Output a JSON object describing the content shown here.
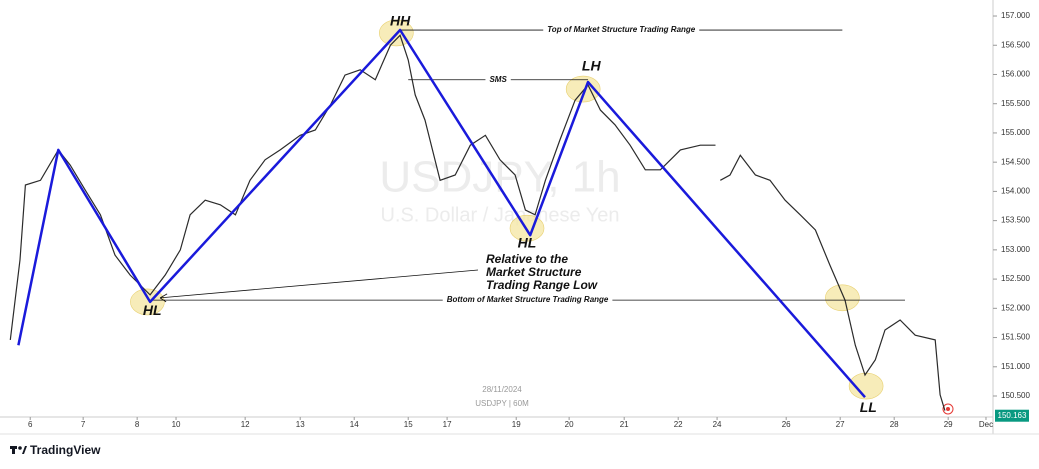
{
  "chart_data": {
    "type": "line",
    "watermark": {
      "symbol": "USDJPY, 1h",
      "description": "U.S. Dollar / Japanese Yen"
    },
    "stamp": {
      "date": "28/11/2024",
      "symbol": "USDJPY | 60M"
    },
    "brand": "TradingView",
    "price_color": "#2b2b2b",
    "x": [
      -0.37,
      -0.19,
      -0.09,
      0.19,
      0.52,
      0.74,
      1.02,
      1.3,
      1.57,
      1.85,
      2.22,
      2.5,
      2.78,
      2.96,
      3.24,
      3.52,
      3.8,
      4.07,
      4.35,
      4.63,
      5.0,
      5.28,
      5.56,
      5.83,
      6.11,
      6.39,
      6.67,
      6.85,
      7.0,
      7.13,
      7.31,
      7.59,
      7.87,
      8.15,
      8.43,
      8.7,
      8.98,
      9.17,
      9.35,
      9.54,
      9.81,
      10.09,
      10.33,
      10.56,
      10.83,
      11.11,
      11.39,
      11.67,
      12.04,
      12.41,
      12.69,
      12.72,
      12.78,
      12.96,
      13.15,
      13.43,
      13.7,
      13.98,
      14.26,
      14.54,
      14.81,
      15.09,
      15.28,
      15.46,
      15.65,
      15.83,
      16.11,
      16.39,
      16.76,
      16.85,
      16.94
    ],
    "values": [
      151.46,
      152.83,
      154.11,
      154.19,
      154.71,
      154.45,
      154.02,
      153.6,
      152.91,
      152.57,
      152.23,
      152.57,
      153.0,
      153.6,
      153.85,
      153.77,
      153.6,
      154.19,
      154.54,
      154.71,
      154.96,
      155.05,
      155.48,
      155.99,
      156.08,
      155.91,
      156.5,
      156.67,
      156.25,
      155.65,
      155.22,
      154.19,
      154.28,
      154.79,
      154.96,
      154.54,
      154.28,
      153.68,
      153.6,
      154.19,
      154.88,
      155.56,
      155.82,
      155.39,
      155.14,
      154.79,
      154.37,
      154.37,
      154.71,
      154.79,
      154.79,
      null,
      154.19,
      154.28,
      154.62,
      154.28,
      154.19,
      153.85,
      153.6,
      153.34,
      152.74,
      152.14,
      151.37,
      150.86,
      151.12,
      151.63,
      151.8,
      151.54,
      151.46,
      150.52,
      150.25
    ],
    "zigzag": {
      "color": "#1a1adb",
      "x": [
        -0.22,
        0.52,
        2.22,
        6.85,
        9.26,
        10.33,
        15.46
      ],
      "values": [
        151.37,
        154.71,
        152.11,
        156.76,
        153.25,
        155.87,
        150.48
      ]
    },
    "highlights": {
      "color": "#f5e7a8",
      "x": [
        2.17,
        6.78,
        10.24,
        9.2,
        15.04,
        15.48
      ],
      "values": [
        152.11,
        156.71,
        155.75,
        153.37,
        152.18,
        150.67
      ]
    },
    "swing_labels": [
      {
        "label": "HH",
        "x": 6.85,
        "value": 156.9
      },
      {
        "label": "LH",
        "x": 10.39,
        "value": 156.13
      },
      {
        "label": "HL",
        "x": 2.26,
        "value": 151.95
      },
      {
        "label": "HL",
        "x": 9.2,
        "value": 153.1
      },
      {
        "label": "LL",
        "x": 15.52,
        "value": 150.29
      }
    ],
    "levels": [
      {
        "label": "Top of Market Structure Trading Range",
        "value": 156.76,
        "x": [
          6.85,
          15.04
        ]
      },
      {
        "label": "SMS",
        "value": 155.91,
        "x": [
          7.0,
          10.33
        ]
      },
      {
        "label": "Bottom of Market Structure Trading Range",
        "value": 152.14,
        "x": [
          2.22,
          16.2
        ]
      }
    ],
    "annotation": [
      "Relative to the",
      "Market Structure",
      "Trading Range Low"
    ],
    "last_price": {
      "value": 150.163,
      "label": "150.163",
      "color": "#089981"
    },
    "xlim": [
      -0.56,
      17.83
    ],
    "ylim": [
      150.141,
      157.274
    ],
    "xticks": [
      {
        "value": 0,
        "label": "6"
      },
      {
        "value": 0.98,
        "label": "7"
      },
      {
        "value": 1.98,
        "label": "8"
      },
      {
        "value": 2.7,
        "label": "10"
      },
      {
        "value": 3.98,
        "label": "12"
      },
      {
        "value": 5.0,
        "label": "13"
      },
      {
        "value": 6.0,
        "label": "14"
      },
      {
        "value": 7.0,
        "label": "15"
      },
      {
        "value": 7.72,
        "label": "17"
      },
      {
        "value": 9.0,
        "label": "19"
      },
      {
        "value": 9.98,
        "label": "20"
      },
      {
        "value": 11.0,
        "label": "21"
      },
      {
        "value": 12.0,
        "label": "22"
      },
      {
        "value": 12.72,
        "label": "24"
      },
      {
        "value": 14.0,
        "label": "26"
      },
      {
        "value": 15.0,
        "label": "27"
      },
      {
        "value": 16.0,
        "label": "28"
      },
      {
        "value": 17.0,
        "label": "29"
      },
      {
        "value": 17.7,
        "label": "Dec"
      }
    ],
    "yticks": [
      {
        "value": 150.5,
        "label": "150.500"
      },
      {
        "value": 151,
        "label": "151.000"
      },
      {
        "value": 151.5,
        "label": "151.500"
      },
      {
        "value": 152,
        "label": "152.000"
      },
      {
        "value": 152.5,
        "label": "152.500"
      },
      {
        "value": 153,
        "label": "153.000"
      },
      {
        "value": 153.5,
        "label": "153.500"
      },
      {
        "value": 154,
        "label": "154.000"
      },
      {
        "value": 154.5,
        "label": "154.500"
      },
      {
        "value": 155,
        "label": "155.000"
      },
      {
        "value": 155.5,
        "label": "155.500"
      },
      {
        "value": 156,
        "label": "156.000"
      },
      {
        "value": 156.5,
        "label": "156.500"
      },
      {
        "value": 157,
        "label": "157.000"
      }
    ]
  }
}
